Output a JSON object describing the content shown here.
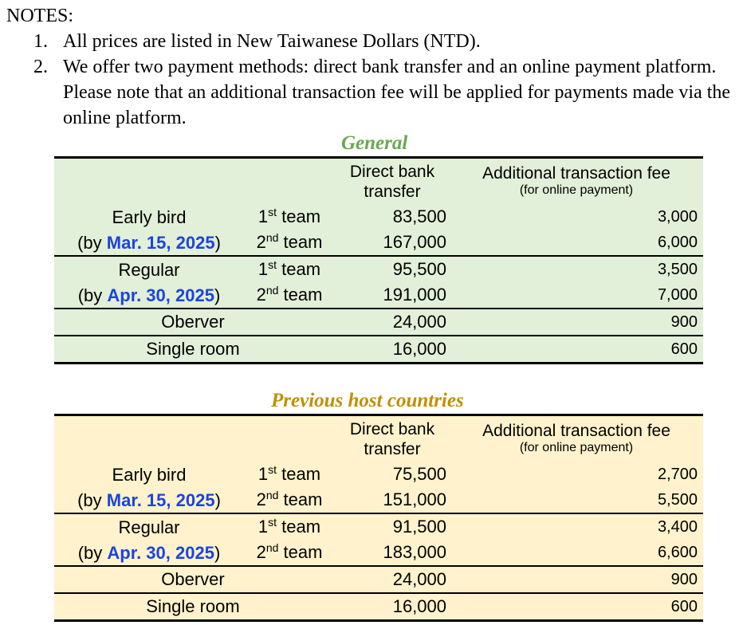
{
  "notes": {
    "heading": "NOTES:",
    "items": [
      {
        "num": "1.",
        "text": "All prices are listed in New Taiwanese Dollars (NTD)."
      },
      {
        "num": "2.",
        "text": "We offer two payment methods: direct bank transfer and an online payment platform. Please note that an additional transaction fee will be applied for payments made via the online platform."
      }
    ]
  },
  "general": {
    "title": "General",
    "header": {
      "col1_line1": "Direct bank",
      "col1_line2": "transfer",
      "col2_line1": "Additional transaction fee",
      "col2_line2": "(for online payment)"
    },
    "early": {
      "label": "Early bird",
      "by_pre": "(by ",
      "date": "Mar. 15, 2025",
      "by_post": ")",
      "team1": {
        "n": "1",
        "sup": "st",
        "word": " team",
        "price": "83,500",
        "fee": "3,000"
      },
      "team2": {
        "n": "2",
        "sup": "nd",
        "word": " team",
        "price": "167,000",
        "fee": "6,000"
      }
    },
    "regular": {
      "label": "Regular",
      "by_pre": "(by ",
      "date": "Apr. 30, 2025",
      "by_post": ")",
      "team1": {
        "n": "1",
        "sup": "st",
        "word": " team",
        "price": "95,500",
        "fee": "3,500"
      },
      "team2": {
        "n": "2",
        "sup": "nd",
        "word": " team",
        "price": "191,000",
        "fee": "7,000"
      }
    },
    "observer": {
      "label": "Oberver",
      "price": "24,000",
      "fee": "900"
    },
    "single": {
      "label": "Single room",
      "price": "16,000",
      "fee": "600"
    }
  },
  "previous": {
    "title": "Previous host countries",
    "header": {
      "col1_line1": "Direct bank",
      "col1_line2": "transfer",
      "col2_line1": "Additional transaction fee",
      "col2_line2": "(for online payment)"
    },
    "early": {
      "label": "Early bird",
      "by_pre": "(by ",
      "date": "Mar. 15, 2025",
      "by_post": ")",
      "team1": {
        "n": "1",
        "sup": "st",
        "word": " team",
        "price": "75,500",
        "fee": "2,700"
      },
      "team2": {
        "n": "2",
        "sup": "nd",
        "word": " team",
        "price": "151,000",
        "fee": "5,500"
      }
    },
    "regular": {
      "label": "Regular",
      "by_pre": "(by ",
      "date": "Apr. 30, 2025",
      "by_post": ")",
      "team1": {
        "n": "1",
        "sup": "st",
        "word": " team",
        "price": "91,500",
        "fee": "3,400"
      },
      "team2": {
        "n": "2",
        "sup": "nd",
        "word": " team",
        "price": "183,000",
        "fee": "6,600"
      }
    },
    "observer": {
      "label": "Oberver",
      "price": "24,000",
      "fee": "900"
    },
    "single": {
      "label": "Single room",
      "price": "16,000",
      "fee": "600"
    }
  }
}
